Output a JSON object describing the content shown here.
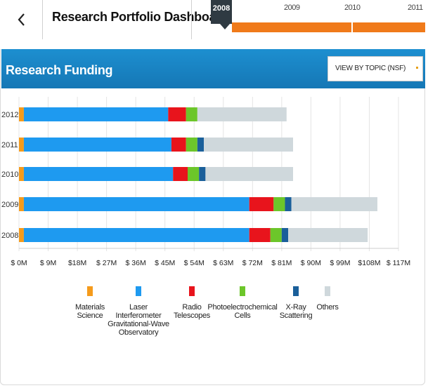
{
  "header": {
    "title": "Research Portfolio Dashboard",
    "back_icon": "chevron-left-icon"
  },
  "timeline": {
    "selected": "2008",
    "years": [
      "2008",
      "2009",
      "2010",
      "2011"
    ],
    "accent": "#f07a1a",
    "selected_bg": "#2f3a42"
  },
  "panel": {
    "title": "Research Funding",
    "dropdown_label": "VIEW BY TOPIC (NSF)",
    "header_color": "#1a86c7"
  },
  "chart_data": {
    "type": "bar",
    "orientation": "horizontal",
    "stacked": true,
    "categories": [
      "2012",
      "2011",
      "2010",
      "2009",
      "2008"
    ],
    "xlim": [
      0,
      117
    ],
    "x_ticks": [
      "$ 0M",
      "$ 9M",
      "$18M",
      "$ 27M",
      "$ 36M",
      "$ 45M",
      "$ 54M",
      "$ 63M",
      "$ 72M",
      "$ 81M",
      "$ 90M",
      "$ 99M",
      "$108M",
      "$ 117M"
    ],
    "grid": true,
    "legend_position": "bottom",
    "series": [
      {
        "name": "Materials Science",
        "color": "#f59b1c",
        "values": [
          1.5,
          1.5,
          1.5,
          1.5,
          1.5
        ]
      },
      {
        "name": "Laser Interferometer Gravitational-Wave Observatory",
        "color": "#1e9af0",
        "values": [
          44.5,
          45.5,
          46,
          69.5,
          69.5
        ]
      },
      {
        "name": "Radio Telescopes",
        "color": "#e8141c",
        "values": [
          5.5,
          4.5,
          4.5,
          7.5,
          6.5
        ]
      },
      {
        "name": "Photoelectrochemical Cells",
        "color": "#6cc62a",
        "values": [
          3.5,
          3.5,
          3.5,
          3.5,
          3.5
        ]
      },
      {
        "name": "X-Ray Scattering",
        "color": "#1a5f9a",
        "values": [
          0,
          2,
          2,
          2,
          2
        ]
      },
      {
        "name": "Others",
        "color": "#cfd8dc",
        "values": [
          27.5,
          27.5,
          27,
          26.5,
          24.5
        ]
      }
    ]
  },
  "legend": [
    {
      "label_lines": [
        "Materials",
        "Science"
      ],
      "color": "#f59b1c",
      "icon": "orange-swatch"
    },
    {
      "label_lines": [
        "Laser",
        "Interferometer",
        "Gravitational-Wave",
        "Observatory"
      ],
      "color": "#1e9af0",
      "icon": "blue-swatch"
    },
    {
      "label_lines": [
        "Radio",
        "Telescopes"
      ],
      "color": "#e8141c",
      "icon": "red-swatch"
    },
    {
      "label_lines": [
        "Photoelectrochemical",
        "Cells"
      ],
      "color": "#6cc62a",
      "icon": "green-swatch"
    },
    {
      "label_lines": [
        "X-Ray",
        "Scattering"
      ],
      "color": "#1a5f9a",
      "icon": "navy-swatch"
    },
    {
      "label_lines": [
        "Others"
      ],
      "color": "#cfd8dc",
      "icon": "gray-swatch"
    }
  ]
}
